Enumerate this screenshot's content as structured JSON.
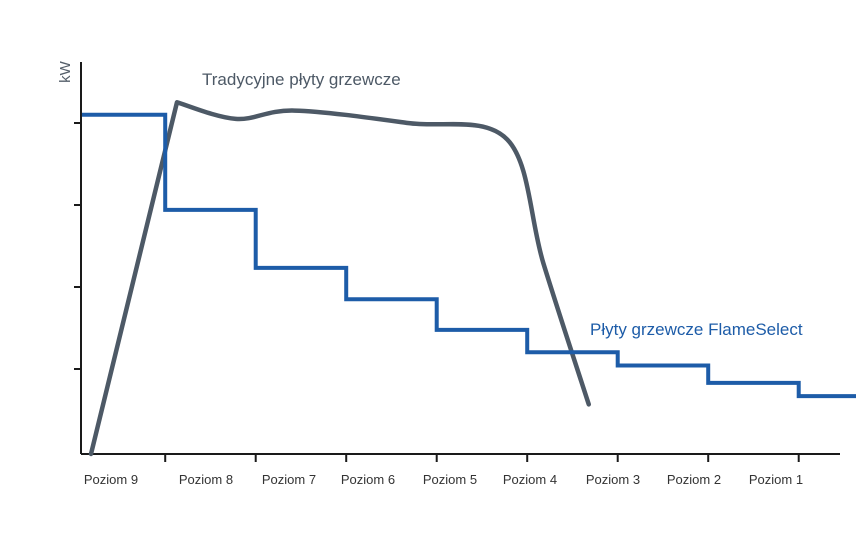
{
  "chart_data": {
    "type": "line",
    "title": "",
    "xlabel": "",
    "ylabel": "kW",
    "categories": [
      "Poziom 9",
      "Poziom 8",
      "Poziom 7",
      "Poziom 6",
      "Poziom 5",
      "Poziom 4",
      "Poziom 3",
      "Poziom 2",
      "Poziom 1"
    ],
    "ylim": [
      0,
      4.2
    ],
    "grid": false,
    "series": [
      {
        "name": "Tradycyjne płyty grzewcze",
        "style": "smooth",
        "color": "#4d5966",
        "points": [
          [
            0.0,
            0.0
          ],
          [
            0.95,
            4.25
          ],
          [
            1.6,
            4.05
          ],
          [
            2.25,
            4.15
          ],
          [
            3.5,
            4.0
          ],
          [
            4.6,
            3.8
          ],
          [
            5.0,
            2.3
          ],
          [
            5.5,
            0.6
          ]
        ]
      },
      {
        "name": "Płyty grzewcze FlameSelect",
        "style": "step",
        "color": "#1d5ca8",
        "levels": [
          4.1,
          2.95,
          2.25,
          1.87,
          1.5,
          1.23,
          1.07,
          0.86,
          0.7,
          0.0
        ],
        "x_start": -0.1,
        "x_end": 9.0
      }
    ],
    "colors": {
      "axis": "#1a1a1a",
      "text": "#333333"
    }
  }
}
